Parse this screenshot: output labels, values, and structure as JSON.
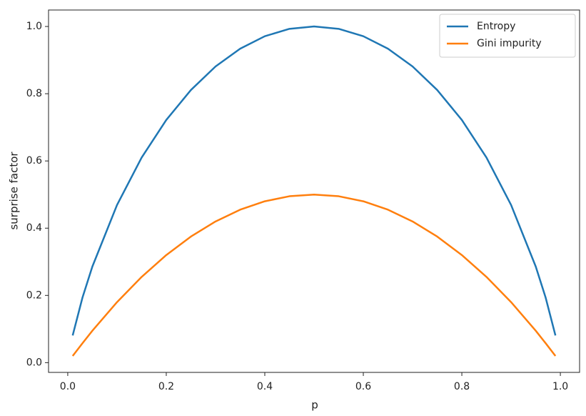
{
  "chart_data": {
    "type": "line",
    "x_label": "p",
    "y_label": "surprise factor",
    "x": [
      0.01,
      0.03,
      0.05,
      0.1,
      0.15,
      0.2,
      0.25,
      0.3,
      0.35,
      0.4,
      0.45,
      0.5,
      0.55,
      0.6,
      0.65,
      0.7,
      0.75,
      0.8,
      0.85,
      0.9,
      0.95,
      0.97,
      0.99
    ],
    "series": [
      {
        "name": "Entropy",
        "color": "#1f77b4",
        "values": [
          0.081,
          0.194,
          0.286,
          0.469,
          0.61,
          0.722,
          0.811,
          0.881,
          0.934,
          0.971,
          0.993,
          1.0,
          0.993,
          0.971,
          0.934,
          0.881,
          0.811,
          0.722,
          0.61,
          0.469,
          0.286,
          0.194,
          0.081
        ]
      },
      {
        "name": "Gini impurity",
        "color": "#ff7f0e",
        "values": [
          0.02,
          0.058,
          0.095,
          0.18,
          0.255,
          0.32,
          0.375,
          0.42,
          0.455,
          0.48,
          0.495,
          0.5,
          0.495,
          0.48,
          0.455,
          0.42,
          0.375,
          0.32,
          0.255,
          0.18,
          0.095,
          0.058,
          0.02
        ]
      }
    ],
    "xlim": [
      -0.039,
      1.039
    ],
    "ylim": [
      -0.029,
      1.049
    ],
    "xticks": [
      {
        "value": 0,
        "label": "0.0"
      },
      0.2,
      0.4,
      0.6,
      0.8,
      {
        "value": 1,
        "label": "1.0"
      }
    ],
    "yticks": [
      {
        "value": 0,
        "label": "0.0"
      },
      0.2,
      0.4,
      0.6,
      0.8,
      {
        "value": 1,
        "label": "1.0"
      }
    ],
    "legend": "upper right",
    "grid": false
  }
}
